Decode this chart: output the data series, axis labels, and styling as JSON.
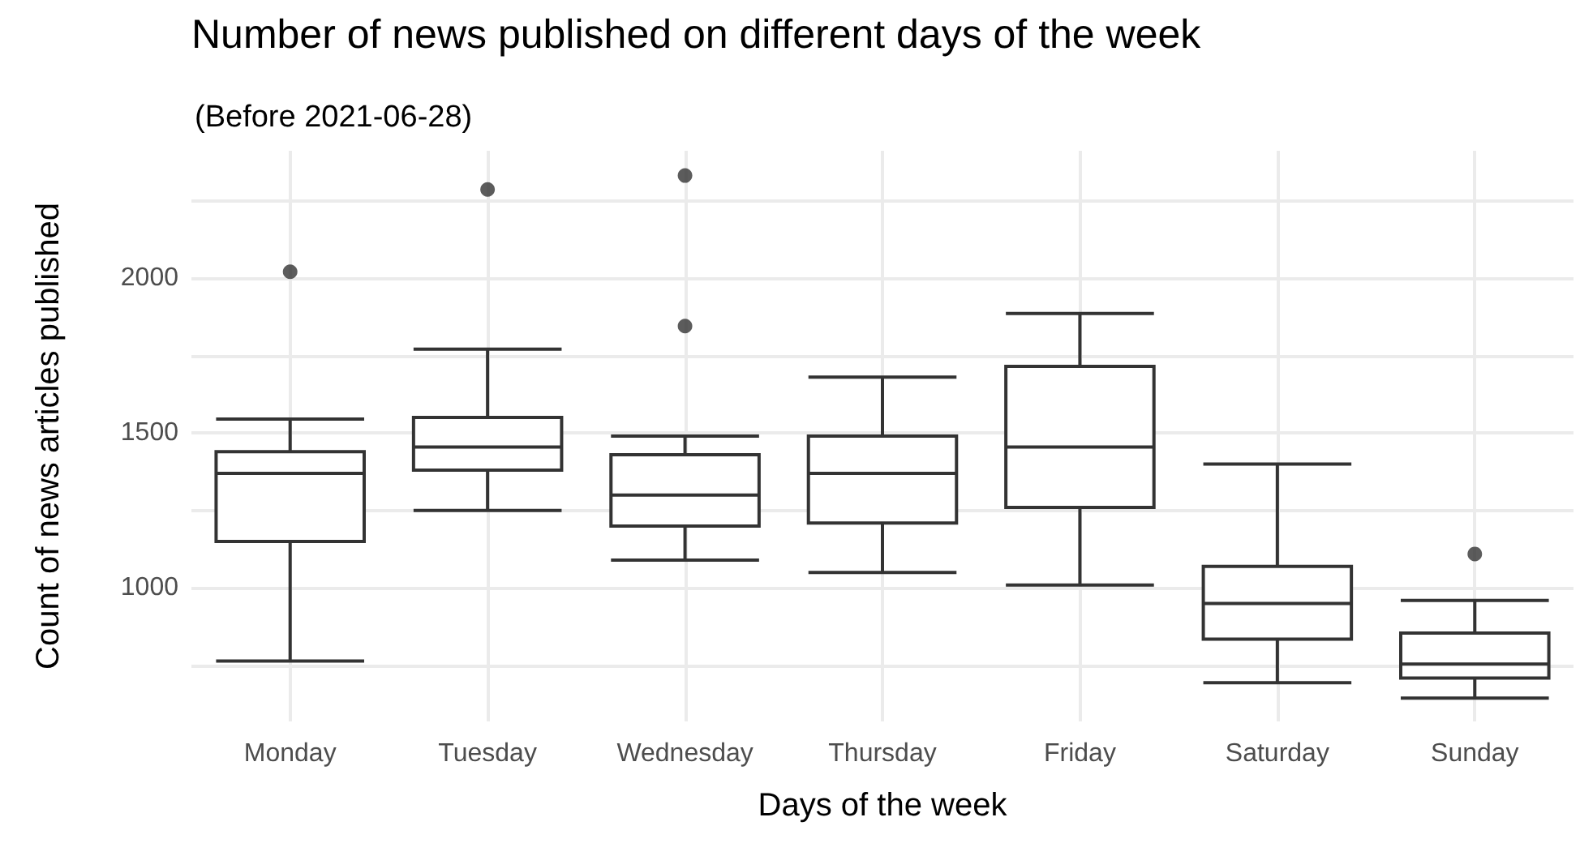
{
  "chart_data": {
    "type": "box",
    "title": "Number of news published on different days of the week",
    "subtitle": "(Before 2021-06-28)",
    "xlabel": "Days of the week",
    "ylabel": "Count of news articles published",
    "categories": [
      "Monday",
      "Tuesday",
      "Wednesday",
      "Thursday",
      "Friday",
      "Saturday",
      "Sunday"
    ],
    "color": "#333333",
    "boxes": [
      {
        "low": 765,
        "q1": 1150,
        "median": 1370,
        "q3": 1440,
        "high": 1545,
        "outliers": [
          2020
        ]
      },
      {
        "low": 1250,
        "q1": 1380,
        "median": 1455,
        "q3": 1550,
        "high": 1770,
        "outliers": [
          2285
        ]
      },
      {
        "low": 1090,
        "q1": 1200,
        "median": 1300,
        "q3": 1430,
        "high": 1490,
        "outliers": [
          2330,
          1845
        ]
      },
      {
        "low": 1050,
        "q1": 1210,
        "median": 1370,
        "q3": 1490,
        "high": 1680
      },
      {
        "low": 1010,
        "q1": 1260,
        "median": 1455,
        "q3": 1715,
        "high": 1885
      },
      {
        "low": 695,
        "q1": 835,
        "median": 950,
        "q3": 1070,
        "high": 1400
      },
      {
        "low": 645,
        "q1": 710,
        "median": 755,
        "q3": 855,
        "high": 960,
        "outliers": [
          1110
        ]
      }
    ],
    "ylim": [
      570,
      2410
    ],
    "yticks": [
      {
        "value": 750,
        "label": null
      },
      1000,
      {
        "value": 1250,
        "label": null
      },
      1500,
      {
        "value": 1750,
        "label": null
      },
      2000,
      {
        "value": 2250,
        "label": null
      }
    ],
    "grid": true
  }
}
